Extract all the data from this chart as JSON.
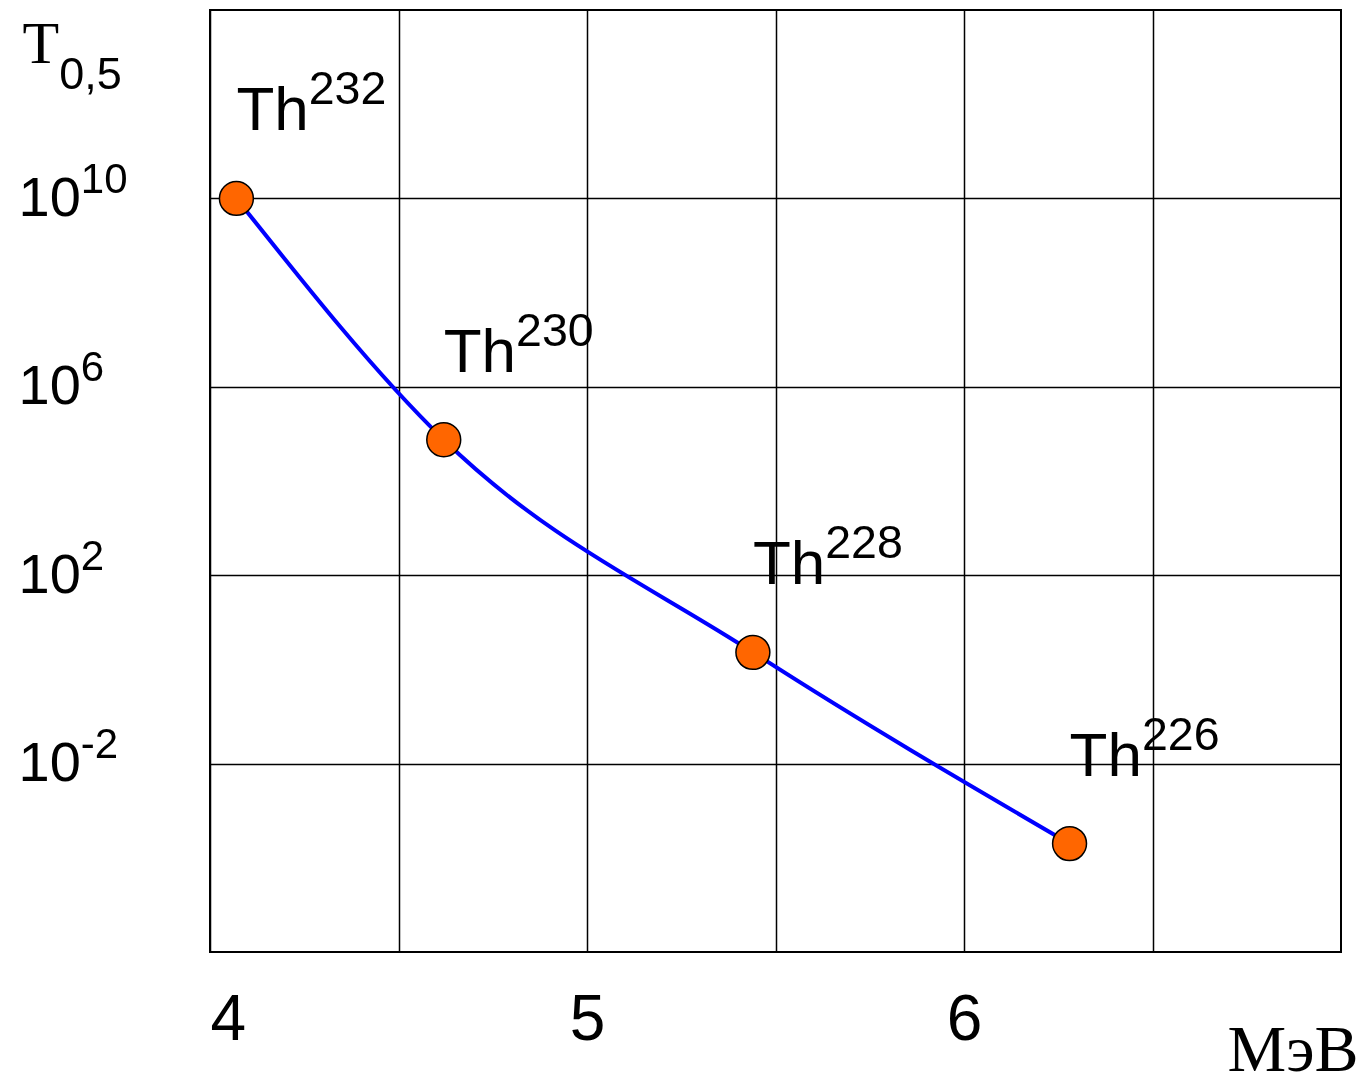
{
  "chart_data": {
    "type": "line",
    "ylabel": "T$_{0,5}$",
    "xlabel": "МэВ",
    "log": "y",
    "grid": true,
    "marker": "circle",
    "line_style": "solid",
    "xlim": [
      4,
      7
    ],
    "xticks": [
      4,
      {
        "value": 4.5,
        "label": null
      },
      5,
      {
        "value": 5.5,
        "label": null
      },
      6,
      {
        "value": 6.5,
        "label": null
      }
    ],
    "ylim": [
      1e-06,
      100000000000000.0
    ],
    "yticks": [
      {
        "value": 0.01,
        "label": "10$^{-2}$"
      },
      {
        "value": 100,
        "label": "10$^{2}$"
      },
      {
        "value": 1000000.0,
        "label": "10$^{6}$"
      },
      {
        "value": 10000000000.0,
        "label": "10$^{10}$"
      }
    ],
    "x": [
      4.07,
      4.62,
      5.44,
      6.28
    ],
    "series": [
      {
        "color": "#0000ff",
        "values": [
          10000000000.0,
          75000.0,
          2.3,
          0.0002
        ]
      }
    ],
    "annotations": [
      {
        "text": "Th$^{232}$",
        "x": 4.07,
        "y": 10000000000.0
      },
      {
        "text": "Th$^{230}$",
        "x": 4.62,
        "y": 75000.0
      },
      {
        "text": "Th$^{228}$",
        "x": 5.44,
        "y": 2.3
      },
      {
        "text": "Th$^{226}$",
        "x": 6.28,
        "y": 0.0002
      }
    ]
  }
}
